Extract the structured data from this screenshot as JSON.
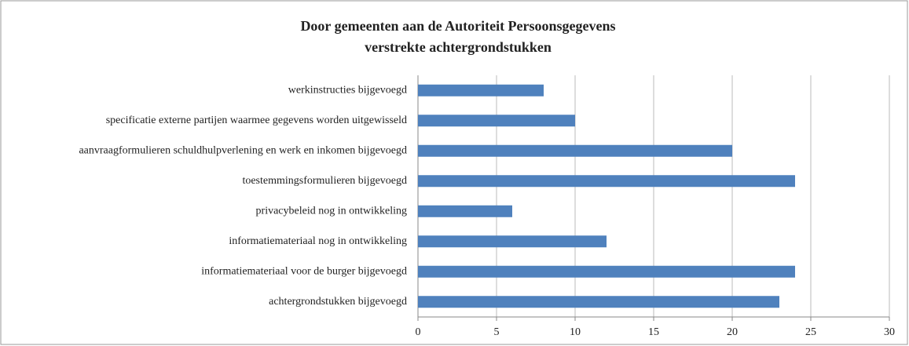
{
  "chart_data": {
    "type": "bar",
    "orientation": "horizontal",
    "title": [
      "Door gemeenten aan de Autoriteit Persoonsgegevens",
      "verstrekte achtergrondstukken"
    ],
    "categories": [
      "werkinstructies bijgevoegd",
      "specificatie externe partijen waarmee gegevens worden uitgewisseld",
      "aanvraagformulieren schuldhulpverlening en werk en inkomen bijgevoegd",
      "toestemmingsformulieren bijgevoegd",
      "privacybeleid nog in ontwikkeling",
      "informatiemateriaal nog in ontwikkeling",
      "informatiemateriaal voor de burger bijgevoegd",
      "achtergrondstukken bijgevoegd"
    ],
    "values": [
      8,
      10,
      20,
      24,
      6,
      12,
      24,
      23
    ],
    "color": "#4f81bd",
    "xlim": [
      0,
      30
    ],
    "xticks": [
      0,
      5,
      10,
      15,
      20,
      25,
      30
    ],
    "grid": true
  }
}
